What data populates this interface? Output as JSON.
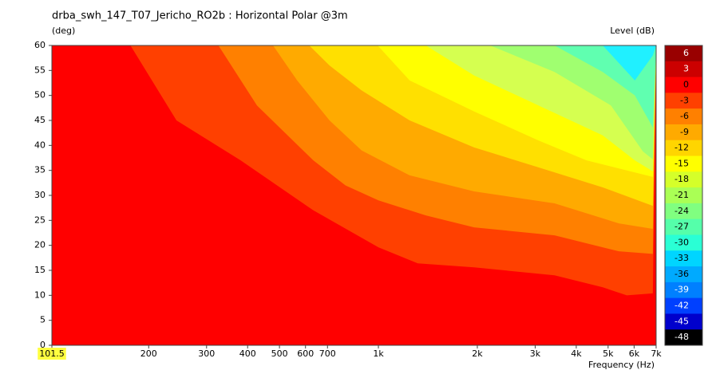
{
  "chart_data": {
    "type": "contour",
    "title": "drba_swh_147_T07_Jericho_RO2b : Horizontal Polar @3m",
    "ylabel": "(deg)",
    "xlabel": "Frequency  (Hz)",
    "colorbar_label": "Level  (dB)",
    "log_x": true,
    "xlim": [
      101.5,
      7000
    ],
    "xticks": [
      101.5,
      200,
      300,
      400,
      500,
      600,
      700,
      {
        "value": 1000,
        "label": "1k"
      },
      {
        "value": 2000,
        "label": "2k"
      },
      {
        "value": 3000,
        "label": "3k"
      },
      {
        "value": 4000,
        "label": "4k"
      },
      {
        "value": 5000,
        "label": "5k"
      },
      {
        "value": 6000,
        "label": "6k"
      },
      {
        "value": 7000,
        "label": "7k"
      }
    ],
    "ylim": [
      0,
      60
    ],
    "yticks": [
      0,
      5,
      10,
      15,
      20,
      25,
      30,
      35,
      40,
      45,
      50,
      55,
      60
    ],
    "base_color": "#ff0000",
    "series": [
      {
        "color": "#ff4000",
        "x": [
          176,
          243,
          381,
          634,
          1000,
          1318,
          1955,
          3436,
          4815,
          5700,
          6840
        ],
        "y": [
          60,
          45,
          37,
          27,
          19.6,
          16.4,
          15.6,
          14,
          11.6,
          10,
          10.4
        ]
      },
      {
        "color": "#ff8000",
        "x": [
          326,
          427,
          634,
          794,
          1000,
          1394,
          1955,
          3436,
          5390,
          6840
        ],
        "y": [
          60,
          48,
          37,
          32,
          29,
          26,
          23.6,
          22,
          18.8,
          18.3
        ]
      },
      {
        "color": "#ffaa00",
        "x": [
          478,
          566,
          710,
          889,
          1245,
          1955,
          3436,
          5390,
          6840
        ],
        "y": [
          60,
          53,
          45,
          39,
          34,
          30.8,
          28.4,
          24.4,
          23.3
        ]
      },
      {
        "color": "#ffe000",
        "x": [
          616,
          710,
          889,
          1245,
          1955,
          3069,
          4815,
          6840
        ],
        "y": [
          60,
          56,
          51,
          45,
          39.6,
          35.6,
          31.6,
          27.9
        ]
      },
      {
        "color": "#ffff00",
        "x": [
          995,
          1245,
          1955,
          3069,
          4300,
          6840
        ],
        "y": [
          60,
          53,
          46.8,
          41,
          37,
          33.7
        ]
      },
      {
        "color": "#d5ff50",
        "x": [
          1394,
          1955,
          3069,
          4815,
          6030,
          6840
        ],
        "y": [
          60,
          54,
          48,
          42,
          37,
          34.8
        ]
      },
      {
        "color": "#a0ff70",
        "x": [
          2189,
          3436,
          5100,
          6380,
          6840
        ],
        "y": [
          60,
          54.7,
          48,
          38.8,
          37.2
        ]
      },
      {
        "color": "#60ffb0",
        "x": [
          3436,
          4815,
          6030,
          6840
        ],
        "y": [
          60,
          54.7,
          50,
          43.6
        ]
      },
      {
        "color": "#20f0ff",
        "x": [
          4815,
          6030,
          6840
        ],
        "y": [
          60,
          53,
          58
        ]
      }
    ],
    "colorbar": {
      "ticks": [
        6,
        3,
        0,
        -3,
        -6,
        -9,
        -12,
        -15,
        -18,
        -21,
        -24,
        -27,
        -30,
        -33,
        -36,
        -39,
        -42,
        -45,
        -48
      ],
      "colors": [
        "#990000",
        "#cc0000",
        "#ff0000",
        "#ff4000",
        "#ff8000",
        "#ffaa00",
        "#ffd500",
        "#ffff00",
        "#d5ff2a",
        "#aaff55",
        "#80ff80",
        "#55ffaa",
        "#2affd5",
        "#00d5ff",
        "#00aaff",
        "#0080ff",
        "#0040ff",
        "#0000cc",
        "#000000"
      ]
    }
  }
}
